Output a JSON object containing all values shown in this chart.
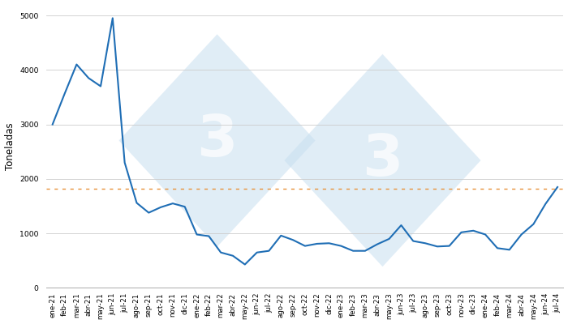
{
  "ylabel": "Toneladas",
  "ylim": [
    0,
    5200
  ],
  "yticks": [
    0,
    1000,
    2000,
    3000,
    4000,
    5000
  ],
  "line_color": "#1f6eb5",
  "line_width": 1.5,
  "hline_value": 1820,
  "hline_color": "#e8923a",
  "background_color": "#ffffff",
  "grid_color": "#cccccc",
  "tick_label_fontsize": 6.2,
  "ylabel_fontsize": 8.5,
  "labels": [
    "ene-21",
    "feb-21",
    "mar-21",
    "abr-21",
    "may-21",
    "jun-21",
    "jul-21",
    "ago-21",
    "sep-21",
    "oct-21",
    "nov-21",
    "dic-21",
    "ene-22",
    "feb-22",
    "mar-22",
    "abr-22",
    "may-22",
    "jun-22",
    "jul-22",
    "ago-22",
    "sep-22",
    "oct-22",
    "nov-22",
    "dic-22",
    "ene-23",
    "feb-23",
    "mar-23",
    "abr-23",
    "may-23",
    "jun-23",
    "jul-23",
    "ago-23",
    "sep-23",
    "oct-23",
    "nov-23",
    "dic-23",
    "ene-24",
    "feb-24",
    "mar-24",
    "abr-24",
    "may-24",
    "jun-24",
    "jul-24"
  ],
  "values": [
    3000,
    3560,
    4100,
    3850,
    3700,
    4950,
    2300,
    1560,
    1380,
    1480,
    1550,
    1490,
    980,
    950,
    650,
    590,
    430,
    650,
    680,
    960,
    880,
    770,
    810,
    820,
    770,
    680,
    680,
    800,
    900,
    1150,
    860,
    820,
    760,
    770,
    1020,
    1050,
    980,
    730,
    700,
    980,
    1170,
    1540,
    1850
  ],
  "watermark_color": "#c8dff0",
  "watermark_alpha": 0.55
}
